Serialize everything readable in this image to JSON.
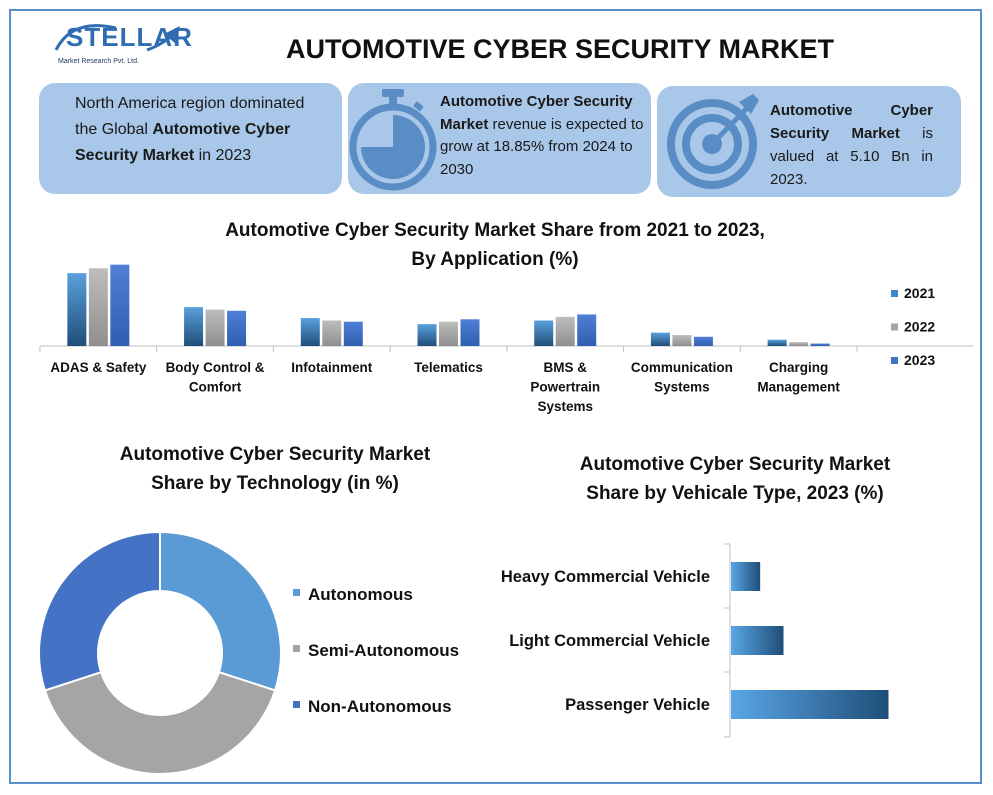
{
  "logo": {
    "name": "STELLAR",
    "sub": "Market Research Pvt. Ltd."
  },
  "title": "AUTOMOTIVE CYBER SECURITY MARKET",
  "cards": {
    "c1": {
      "t1": "North America region dominated the Global ",
      "t2": "Automotive Cyber Security Market",
      "t3": " in 2023"
    },
    "c2": {
      "t1": "Automotive Cyber Security Market",
      "t2": " revenue is expected to grow at 18.85% from 2024 to 2030"
    },
    "c3": {
      "t1": "Automotive Cyber Security Market",
      "t2": " is valued at 5.10 Bn in 2023."
    }
  },
  "colors": {
    "s2021": "#3f86c8",
    "s2022": "#a6a6a6",
    "s2023": "#4472c4",
    "card": "#a9c8e9",
    "border": "#5b8fc7"
  },
  "chart_data": [
    {
      "type": "bar",
      "title": "Automotive Cyber Security Market Share from 2021 to 2023, By Application (%)",
      "title_line1": "Automotive Cyber Security Market Share from 2021 to 2023,",
      "title_line2": "By Application (%)",
      "categories": [
        [
          "ADAS & Safety"
        ],
        [
          "Body Control &",
          "Comfort"
        ],
        [
          "Infotainment"
        ],
        [
          "Telematics"
        ],
        [
          "BMS &",
          "Powertrain",
          "Systems"
        ],
        [
          "Communication",
          "Systems"
        ],
        [
          "Charging",
          "Management"
        ]
      ],
      "series": [
        {
          "name": "2021",
          "values": [
            30,
            16,
            11.5,
            9,
            10.5,
            5.5,
            2.6
          ]
        },
        {
          "name": "2022",
          "values": [
            32,
            15,
            10.5,
            10,
            12,
            4.5,
            1.6
          ]
        },
        {
          "name": "2023",
          "values": [
            33.5,
            14.5,
            10,
            11,
            13,
            3.8,
            1.0
          ]
        }
      ],
      "ylim": [
        0,
        35
      ],
      "legend_position": "right"
    },
    {
      "type": "pie",
      "title_line1": "Automotive Cyber Security Market",
      "title_line2": "Share by Technology (in %)",
      "donut": true,
      "labels": [
        "Autonomous",
        "Semi-Autonomous",
        "Non-Autonomous"
      ],
      "values": [
        30,
        40,
        30
      ],
      "colors": [
        "#5b9bd5",
        "#a5a5a5",
        "#4472c4"
      ],
      "legend_position": "right"
    },
    {
      "type": "bar",
      "orientation": "horizontal",
      "title_line1": "Automotive Cyber  Security Market",
      "title_line2": "Share by Vehicale Type, 2023 (%)",
      "categories": [
        "Heavy Commercial Vehicle",
        "Light Commercial Vehicle",
        "Passenger Vehicle"
      ],
      "values": [
        10,
        18,
        54
      ],
      "xlim": [
        0,
        60
      ]
    }
  ]
}
